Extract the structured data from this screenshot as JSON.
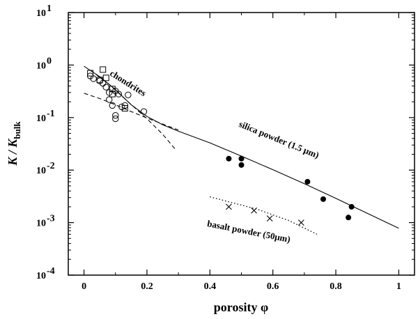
{
  "chart_data": {
    "type": "scatter",
    "title": "",
    "xlabel": "porosity φ",
    "ylabel_main": "K / K",
    "ylabel_sub": "bulk",
    "xlim": [
      -0.05,
      1.05
    ],
    "ylim_log10": [
      -4,
      1
    ],
    "x_ticks": [
      {
        "value": 0,
        "label": "0"
      },
      {
        "value": 0.2,
        "label": "0.2"
      },
      {
        "value": 0.4,
        "label": "0.4"
      },
      {
        "value": 0.6,
        "label": "0.6"
      },
      {
        "value": 0.8,
        "label": "0.8"
      },
      {
        "value": 1.0,
        "label": "1"
      }
    ],
    "y_ticks": [
      {
        "exp": 1,
        "mantissa": "10",
        "sup": "1"
      },
      {
        "exp": 0,
        "mantissa": "10",
        "sup": "0"
      },
      {
        "exp": -1,
        "mantissa": "10",
        "sup": "-1"
      },
      {
        "exp": -2,
        "mantissa": "10",
        "sup": "-2"
      },
      {
        "exp": -3,
        "mantissa": "10",
        "sup": "-3"
      },
      {
        "exp": -4,
        "mantissa": "10",
        "sup": "-4"
      }
    ],
    "series": [
      {
        "name": "chondrites (circles)",
        "marker": "circle-open",
        "points": [
          [
            0.02,
            0.62
          ],
          [
            0.03,
            0.55
          ],
          [
            0.05,
            0.5
          ],
          [
            0.06,
            0.45
          ],
          [
            0.07,
            0.38
          ],
          [
            0.08,
            0.3
          ],
          [
            0.08,
            0.22
          ],
          [
            0.09,
            0.17
          ],
          [
            0.1,
            0.32
          ],
          [
            0.1,
            0.11
          ],
          [
            0.1,
            0.095
          ],
          [
            0.11,
            0.28
          ],
          [
            0.12,
            0.16
          ],
          [
            0.13,
            0.17
          ],
          [
            0.14,
            0.27
          ],
          [
            0.19,
            0.13
          ]
        ]
      },
      {
        "name": "chondrites (squares)",
        "marker": "square-open",
        "points": [
          [
            0.02,
            0.7
          ],
          [
            0.05,
            0.52
          ],
          [
            0.06,
            0.82
          ],
          [
            0.07,
            0.57
          ],
          [
            0.09,
            0.35
          ],
          [
            0.09,
            0.28
          ],
          [
            0.13,
            0.15
          ]
        ]
      },
      {
        "name": "silica powder (1.5 μm)",
        "marker": "circle-filled",
        "points": [
          [
            0.46,
            0.0165
          ],
          [
            0.5,
            0.0165
          ],
          [
            0.5,
            0.0125
          ],
          [
            0.71,
            0.006
          ],
          [
            0.76,
            0.0028
          ],
          [
            0.84,
            0.00125
          ],
          [
            0.85,
            0.002
          ]
        ]
      },
      {
        "name": "basalt powder (50μm)",
        "marker": "cross",
        "points": [
          [
            0.46,
            0.002
          ],
          [
            0.54,
            0.0017
          ],
          [
            0.59,
            0.0012
          ],
          [
            0.69,
            0.001
          ]
        ]
      }
    ],
    "curves": [
      {
        "name": "solid model",
        "style": "solid",
        "points": [
          [
            0,
            0.95
          ],
          [
            0.05,
            0.6
          ],
          [
            0.1,
            0.34
          ],
          [
            0.15,
            0.175
          ],
          [
            0.2,
            0.105
          ],
          [
            0.25,
            0.073
          ],
          [
            0.3,
            0.055
          ],
          [
            0.4,
            0.033
          ],
          [
            0.5,
            0.0185
          ],
          [
            0.6,
            0.0102
          ],
          [
            0.7,
            0.0055
          ],
          [
            0.8,
            0.0029
          ],
          [
            0.9,
            0.0015
          ],
          [
            1.0,
            0.00078
          ]
        ]
      },
      {
        "name": "dashed steep",
        "style": "dashed",
        "points": [
          [
            0.02,
            0.8
          ],
          [
            0.08,
            0.43
          ],
          [
            0.14,
            0.2
          ],
          [
            0.2,
            0.095
          ],
          [
            0.25,
            0.048
          ],
          [
            0.29,
            0.025
          ]
        ]
      },
      {
        "name": "dashed shallow",
        "style": "dashed",
        "points": [
          [
            0,
            0.29
          ],
          [
            0.05,
            0.23
          ],
          [
            0.1,
            0.175
          ],
          [
            0.15,
            0.13
          ],
          [
            0.2,
            0.098
          ],
          [
            0.25,
            0.075
          ],
          [
            0.3,
            0.058
          ]
        ]
      },
      {
        "name": "basalt trend",
        "style": "dotted",
        "points": [
          [
            0.4,
            0.0031
          ],
          [
            0.55,
            0.0018
          ],
          [
            0.65,
            0.0011
          ],
          [
            0.74,
            0.0006
          ]
        ]
      }
    ],
    "annotations": [
      {
        "text": "chondrites",
        "x": 0.08,
        "y": 0.65,
        "angle": 32
      },
      {
        "text": "silica powder (1.5 μm)",
        "x": 0.49,
        "y": 0.068,
        "angle": 22
      },
      {
        "text": "basalt powder (50μm)",
        "x": 0.39,
        "y": 0.00085,
        "angle": 11
      }
    ]
  }
}
